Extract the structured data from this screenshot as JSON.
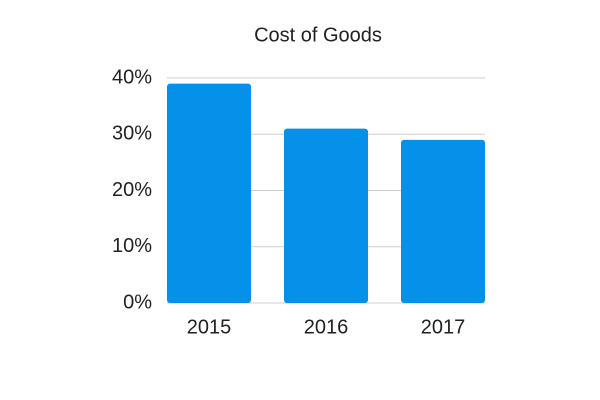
{
  "chart_data": {
    "type": "bar",
    "title": "Cost of Goods",
    "categories": [
      "2015",
      "2016",
      "2017"
    ],
    "values": [
      39,
      31,
      29
    ],
    "color": "#0590ea",
    "ylim": [
      0,
      40
    ],
    "yticks": [
      {
        "value": 0,
        "label": "0%"
      },
      {
        "value": 10,
        "label": "10%"
      },
      {
        "value": 20,
        "label": "20%"
      },
      {
        "value": 30,
        "label": "30%"
      },
      {
        "value": 40,
        "label": "40%"
      }
    ],
    "grid": true
  }
}
